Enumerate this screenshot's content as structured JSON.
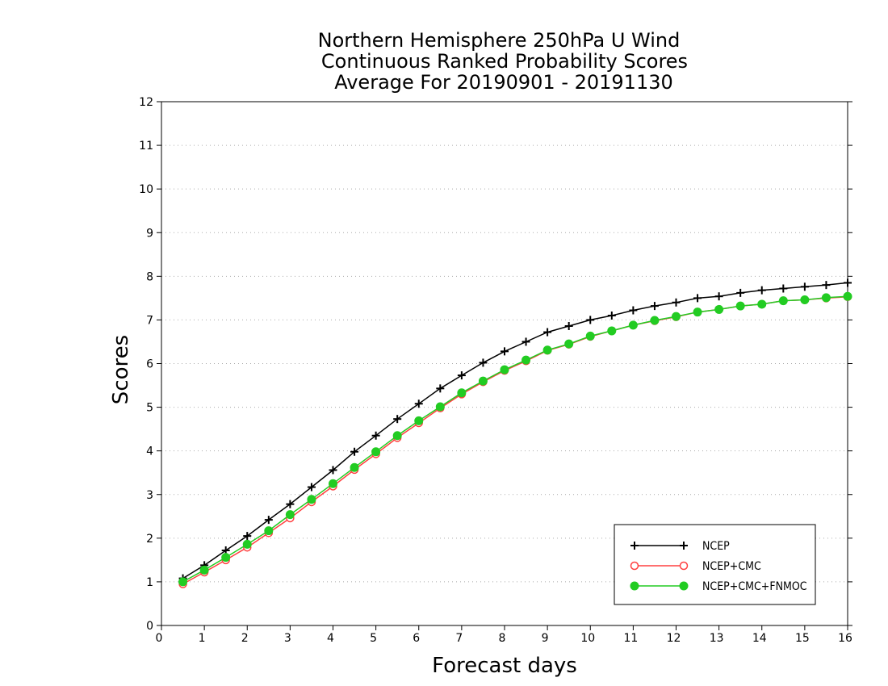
{
  "chart_data": {
    "type": "line",
    "title": [
      "Northern Hemisphere 250hPa U Wind",
      "Continuous Ranked Probability Scores",
      "Average For 20190901 - 20191130"
    ],
    "xlabel": "Forecast days",
    "ylabel": "Scores",
    "xlim": [
      0,
      16
    ],
    "ylim": [
      0,
      12
    ],
    "xticks": [
      0,
      1,
      2,
      3,
      4,
      5,
      6,
      7,
      8,
      9,
      10,
      11,
      12,
      13,
      14,
      15,
      16
    ],
    "yticks": [
      0,
      1,
      2,
      3,
      4,
      5,
      6,
      7,
      8,
      9,
      10,
      11,
      12
    ],
    "grid": "horizontal dotted",
    "legend_position": "bottom-right",
    "x": [
      0.5,
      1,
      1.5,
      2,
      2.5,
      3,
      3.5,
      4,
      4.5,
      5,
      5.5,
      6,
      6.5,
      7,
      7.5,
      8,
      8.5,
      9,
      9.5,
      10,
      10.5,
      11,
      11.5,
      12,
      12.5,
      13,
      13.5,
      14,
      14.5,
      15,
      15.5,
      16
    ],
    "series": [
      {
        "name": "NCEP",
        "color": "#000000",
        "marker": "plus",
        "values": [
          1.08,
          1.38,
          1.72,
          2.05,
          2.42,
          2.78,
          3.17,
          3.56,
          3.98,
          4.35,
          4.73,
          5.08,
          5.43,
          5.73,
          6.02,
          6.28,
          6.5,
          6.72,
          6.86,
          7.0,
          7.1,
          7.22,
          7.32,
          7.4,
          7.5,
          7.54,
          7.62,
          7.68,
          7.72,
          7.76,
          7.8,
          7.85
        ]
      },
      {
        "name": "NCEP+CMC",
        "color": "#ff4040",
        "marker": "open-circle",
        "values": [
          0.95,
          1.22,
          1.5,
          1.79,
          2.12,
          2.46,
          2.83,
          3.19,
          3.57,
          3.93,
          4.3,
          4.64,
          4.98,
          5.3,
          5.58,
          5.84,
          6.06,
          6.3,
          6.44,
          6.62,
          6.75,
          6.88,
          6.98,
          7.07,
          7.18,
          7.24,
          7.32,
          7.36,
          7.44,
          7.46,
          7.5,
          7.53
        ]
      },
      {
        "name": "NCEP+CMC+FNMOC",
        "color": "#22cc22",
        "marker": "filled-circle",
        "values": [
          1.0,
          1.27,
          1.56,
          1.86,
          2.17,
          2.54,
          2.89,
          3.25,
          3.62,
          3.98,
          4.35,
          4.69,
          5.01,
          5.33,
          5.6,
          5.86,
          6.08,
          6.31,
          6.45,
          6.63,
          6.75,
          6.88,
          6.99,
          7.08,
          7.18,
          7.24,
          7.32,
          7.36,
          7.44,
          7.46,
          7.51,
          7.54
        ]
      }
    ]
  }
}
